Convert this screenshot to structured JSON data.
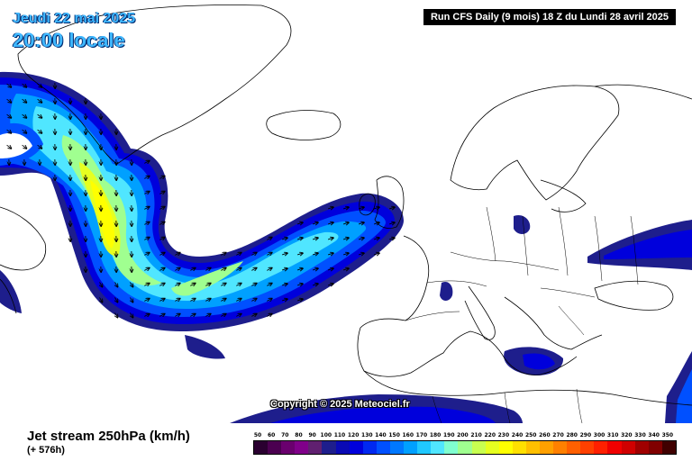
{
  "header": {
    "date_label": "Jeudi 22 mai 2025",
    "time_label": "20:00 locale",
    "run_info": "Run CFS Daily (9 mois) 18 Z du Lundi 28 avril 2025"
  },
  "map": {
    "copyright": "Copyright © 2025 Meteociel.fr",
    "land_color": "#ffffff",
    "sea_color": "#ffffff",
    "coastline_color": "#000000",
    "wind_arrow_color": "#000000"
  },
  "footer": {
    "parameter_label": "Jet stream 250hPa (km/h)",
    "lead_time": "(+ 576h)"
  },
  "legend": {
    "ticks": [
      "50",
      "60",
      "70",
      "80",
      "90",
      "100",
      "110",
      "120",
      "130",
      "140",
      "150",
      "160",
      "170",
      "180",
      "190",
      "200",
      "210",
      "220",
      "230",
      "240",
      "250",
      "260",
      "270",
      "280",
      "290",
      "300",
      "310",
      "320",
      "330",
      "340",
      "350"
    ],
    "colors": [
      "#2a0030",
      "#4b0050",
      "#6a006e",
      "#80008a",
      "#602070",
      "#1e1e8c",
      "#0a0ab4",
      "#0000dc",
      "#0028f0",
      "#0050ff",
      "#0078ff",
      "#00a0ff",
      "#20c8ff",
      "#50e6ff",
      "#80ffd0",
      "#a0ff90",
      "#c8ff50",
      "#e6ff20",
      "#ffff00",
      "#ffe000",
      "#ffc000",
      "#ffa000",
      "#ff8000",
      "#ff6000",
      "#ff4000",
      "#ff2000",
      "#f00000",
      "#d00000",
      "#a00000",
      "#800000",
      "#400000"
    ]
  }
}
